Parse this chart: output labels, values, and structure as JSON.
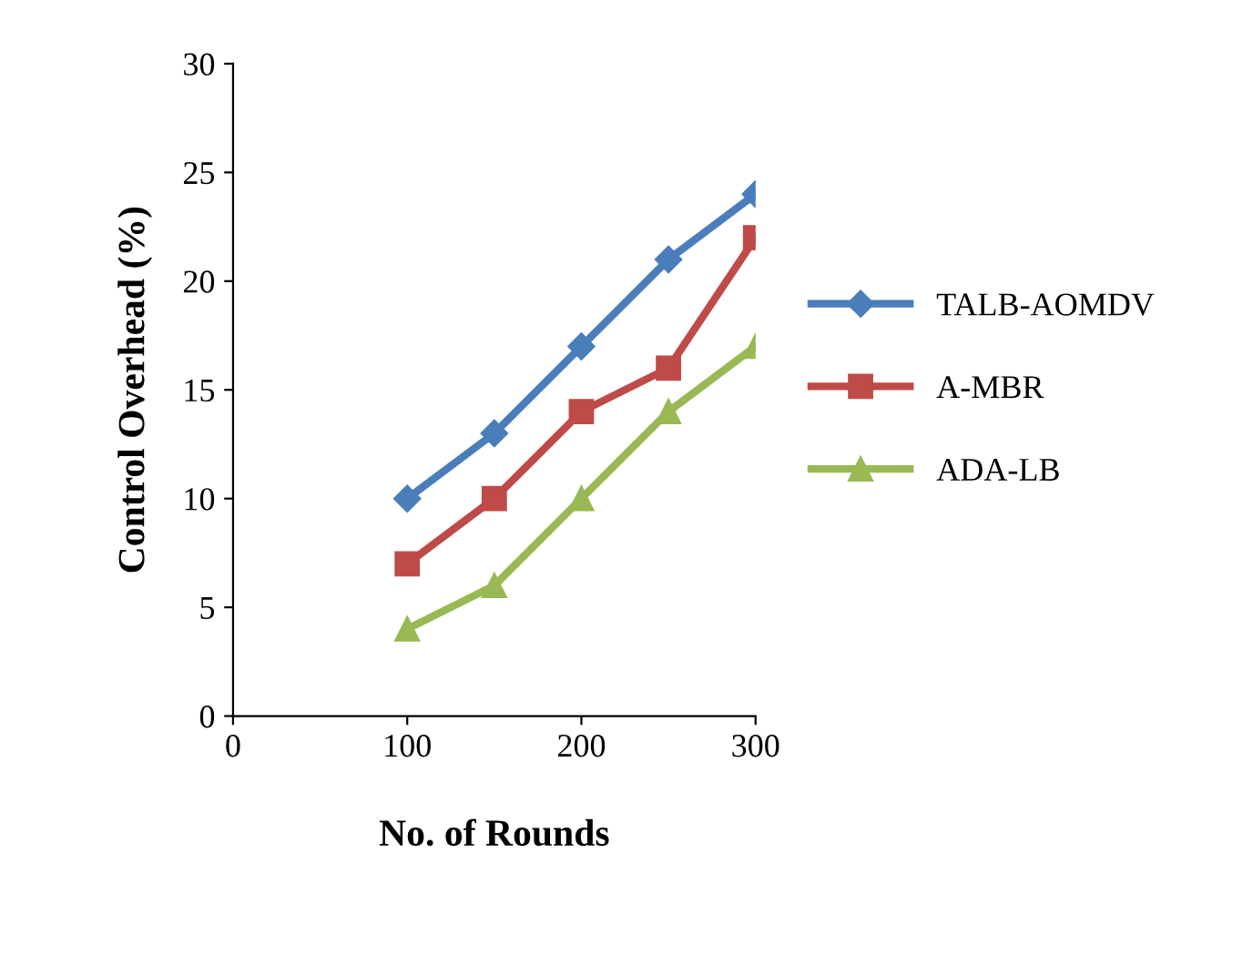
{
  "chart_data": {
    "type": "line",
    "xlabel": "No. of Rounds",
    "ylabel": "Control Overhead (%)",
    "x": [
      100,
      150,
      200,
      250,
      300
    ],
    "series": [
      {
        "name": "TALB-AOMDV",
        "color": "#4a7ebb",
        "marker": "diamond",
        "values": [
          10,
          13,
          17,
          21,
          24
        ]
      },
      {
        "name": "A-MBR",
        "color": "#be4b48",
        "marker": "square",
        "values": [
          7,
          10,
          14,
          16,
          22
        ]
      },
      {
        "name": "ADA-LB",
        "color": "#98b954",
        "marker": "triangle",
        "values": [
          4,
          6,
          10,
          14,
          17
        ]
      }
    ],
    "xlim": [
      0,
      300
    ],
    "xticks": [
      0,
      100,
      200,
      300
    ],
    "ylim": [
      0,
      30
    ],
    "yticks": [
      0,
      5,
      10,
      15,
      20,
      25,
      30
    ],
    "grid": false,
    "legend": "right",
    "line_style": "solid"
  }
}
